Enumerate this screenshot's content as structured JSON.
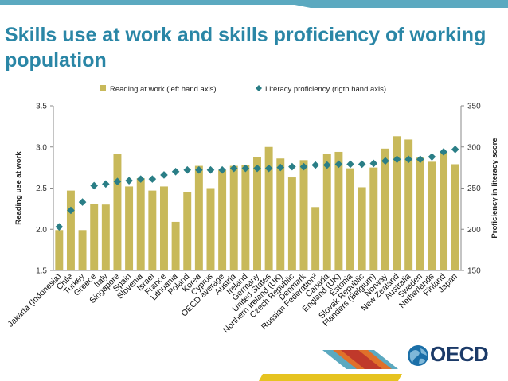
{
  "page": {
    "title": "Skills use at work and skills proficiency of working population",
    "logo_text": "OECD"
  },
  "colors": {
    "title": "#2a86a6",
    "bar": "#c8b95a",
    "marker": "#2a7e86",
    "logo": "#1b3a68",
    "band_teal": "#5ba9c0",
    "band_orange": "#e0702a",
    "band_red": "#c0392b",
    "band_yellow": "#e6c320"
  },
  "chart_data": {
    "type": "bar",
    "title": "",
    "legend_position": "top-center",
    "grid": false,
    "categories": [
      "Jakarta (Indonesia)",
      "Chile",
      "Turkey",
      "Greece",
      "Italy",
      "Singapore",
      "Spain",
      "Slovenia",
      "Israel",
      "France",
      "Lithuania",
      "Poland",
      "Korea",
      "Cyprus",
      "OECD average",
      "Austria",
      "Ireland",
      "Germany",
      "United States",
      "Northern Ireland (UK)",
      "Czech Republic",
      "Denmark",
      "Russian Federation²",
      "Canada",
      "England (UK)",
      "Estonia",
      "Slovak Republic",
      "Flanders (Belgium)",
      "Norway",
      "New Zealand",
      "Australia",
      "Sweden",
      "Netherlands",
      "Finland",
      "Japan"
    ],
    "ylabel": "Reading use at work",
    "ylim": [
      1.5,
      3.5
    ],
    "yticks": [
      "1.5",
      "2.0",
      "2.5",
      "3.0",
      "3.5"
    ],
    "y2label": "Proficiency in literacy score",
    "y2lim": [
      150,
      350
    ],
    "y2ticks": [
      "150",
      "200",
      "250",
      "300",
      "350"
    ],
    "series": [
      {
        "name": "Reading at work (left hand axis)",
        "type": "bar",
        "axis": "left",
        "values": [
          1.99,
          2.47,
          1.99,
          2.31,
          2.3,
          2.92,
          2.52,
          2.62,
          2.47,
          2.52,
          2.09,
          2.45,
          2.77,
          2.5,
          2.72,
          2.77,
          2.78,
          2.88,
          3.0,
          2.86,
          2.63,
          2.84,
          2.27,
          2.92,
          2.94,
          2.74,
          2.51,
          2.75,
          2.98,
          3.13,
          3.09,
          2.87,
          2.82,
          2.94,
          2.79
        ]
      },
      {
        "name": "Literacy proficiency (rigth hand axis)",
        "type": "marker",
        "axis": "right",
        "values": [
          203,
          223,
          233,
          253,
          255,
          258,
          259,
          261,
          261,
          266,
          270,
          272,
          272,
          272,
          272,
          274,
          274,
          274,
          274,
          275,
          276,
          276,
          278,
          278,
          279,
          279,
          279,
          280,
          283,
          285,
          285,
          285,
          288,
          294,
          297
        ]
      }
    ]
  }
}
